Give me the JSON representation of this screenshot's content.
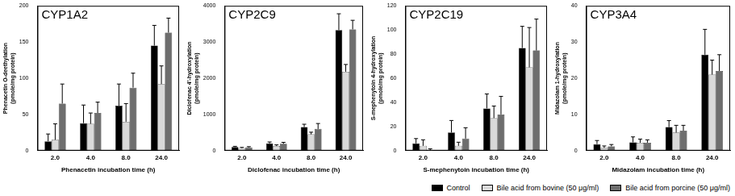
{
  "chart_data": [
    {
      "type": "bar",
      "title": "CYP1A2",
      "x_label": "Phenacetin incubation time (h)",
      "y_label": [
        "Phenacetin O-deethylation",
        "(pmole/mg protein)"
      ],
      "categories": [
        "2.0",
        "4.0",
        "8.0",
        "24.0"
      ],
      "series": [
        {
          "name": "Control",
          "color": "#000000",
          "values": [
            13,
            38,
            62,
            145
          ],
          "errors": [
            10,
            25,
            30,
            28
          ]
        },
        {
          "name": "Bile acid from bovine (50 μg/ml)",
          "color": "#d9d9d9",
          "values": [
            15,
            37,
            40,
            92
          ],
          "errors": [
            22,
            15,
            25,
            25
          ]
        },
        {
          "name": "Bile acid from porcine (50 μg/ml)",
          "color": "#6e6e6e",
          "values": [
            65,
            52,
            87,
            163
          ],
          "errors": [
            27,
            15,
            20,
            20
          ]
        }
      ],
      "ylim": [
        0,
        200
      ],
      "yticks": [
        0,
        50,
        100,
        150,
        200
      ],
      "grid": false
    },
    {
      "type": "bar",
      "title": "CYP2C9",
      "x_label": "Diclofenac incubation time (h)",
      "y_label": [
        "Diclofenac 4'-hydroxylation",
        "(pmole/mg protein)"
      ],
      "categories": [
        "2.0",
        "4.0",
        "8.0",
        "24.0"
      ],
      "series": [
        {
          "name": "Control",
          "color": "#000000",
          "values": [
            100,
            200,
            650,
            3330
          ],
          "errors": [
            20,
            40,
            80,
            450
          ]
        },
        {
          "name": "Bile acid from bovine (50 μg/ml)",
          "color": "#d9d9d9",
          "values": [
            70,
            130,
            450,
            2180
          ],
          "errors": [
            20,
            30,
            60,
            200
          ]
        },
        {
          "name": "Bile acid from porcine (50 μg/ml)",
          "color": "#6e6e6e",
          "values": [
            90,
            190,
            600,
            3350
          ],
          "errors": [
            20,
            40,
            150,
            250
          ]
        }
      ],
      "ylim": [
        0,
        4000
      ],
      "yticks": [
        0,
        1000,
        2000,
        3000,
        4000
      ],
      "grid": false
    },
    {
      "type": "bar",
      "title": "CYP2C19",
      "x_label": "S-mephenytoin incubation time (h)",
      "y_label": [
        "S-mephenytoin 4-hydroxylation",
        "(pmole/mg protein)"
      ],
      "categories": [
        "2.0",
        "4.0",
        "8.0",
        "24.0"
      ],
      "series": [
        {
          "name": "Control",
          "color": "#000000",
          "values": [
            6,
            15,
            35,
            85
          ],
          "errors": [
            4,
            10,
            12,
            18
          ]
        },
        {
          "name": "Bile acid from bovine (50 μg/ml)",
          "color": "#d9d9d9",
          "values": [
            4,
            4,
            27,
            69
          ],
          "errors": [
            5,
            3,
            10,
            33
          ]
        },
        {
          "name": "Bile acid from porcine (50 μg/ml)",
          "color": "#6e6e6e",
          "values": [
            0.5,
            10,
            30,
            83
          ],
          "errors": [
            1,
            9,
            15,
            26
          ]
        }
      ],
      "ylim": [
        0,
        120
      ],
      "yticks": [
        0,
        20,
        40,
        60,
        80,
        100,
        120
      ],
      "grid": false
    },
    {
      "type": "bar",
      "title": "CYP3A4",
      "x_label": "Midazolam incubation time (h)",
      "y_label": [
        "Midazolam 1-hydroxylation",
        "(pmole/mg protein)"
      ],
      "categories": [
        "2.0",
        "4.0",
        "8.0",
        "24.0"
      ],
      "series": [
        {
          "name": "Control",
          "color": "#000000",
          "values": [
            1.8,
            2.3,
            6.5,
            26.5
          ],
          "errors": [
            1,
            1.5,
            1.8,
            7
          ]
        },
        {
          "name": "Bile acid from bovine (50 μg/ml)",
          "color": "#d9d9d9",
          "values": [
            0.8,
            2.2,
            5,
            21
          ],
          "errors": [
            0.5,
            1,
            2,
            4
          ]
        },
        {
          "name": "Bile acid from porcine (50 μg/ml)",
          "color": "#6e6e6e",
          "values": [
            1.2,
            2.2,
            5.5,
            22
          ],
          "errors": [
            0.5,
            0.8,
            1.5,
            4.5
          ]
        }
      ],
      "ylim": [
        0,
        40
      ],
      "yticks": [
        0,
        10,
        20,
        30,
        40
      ],
      "grid": false,
      "legend": "lower right"
    }
  ]
}
